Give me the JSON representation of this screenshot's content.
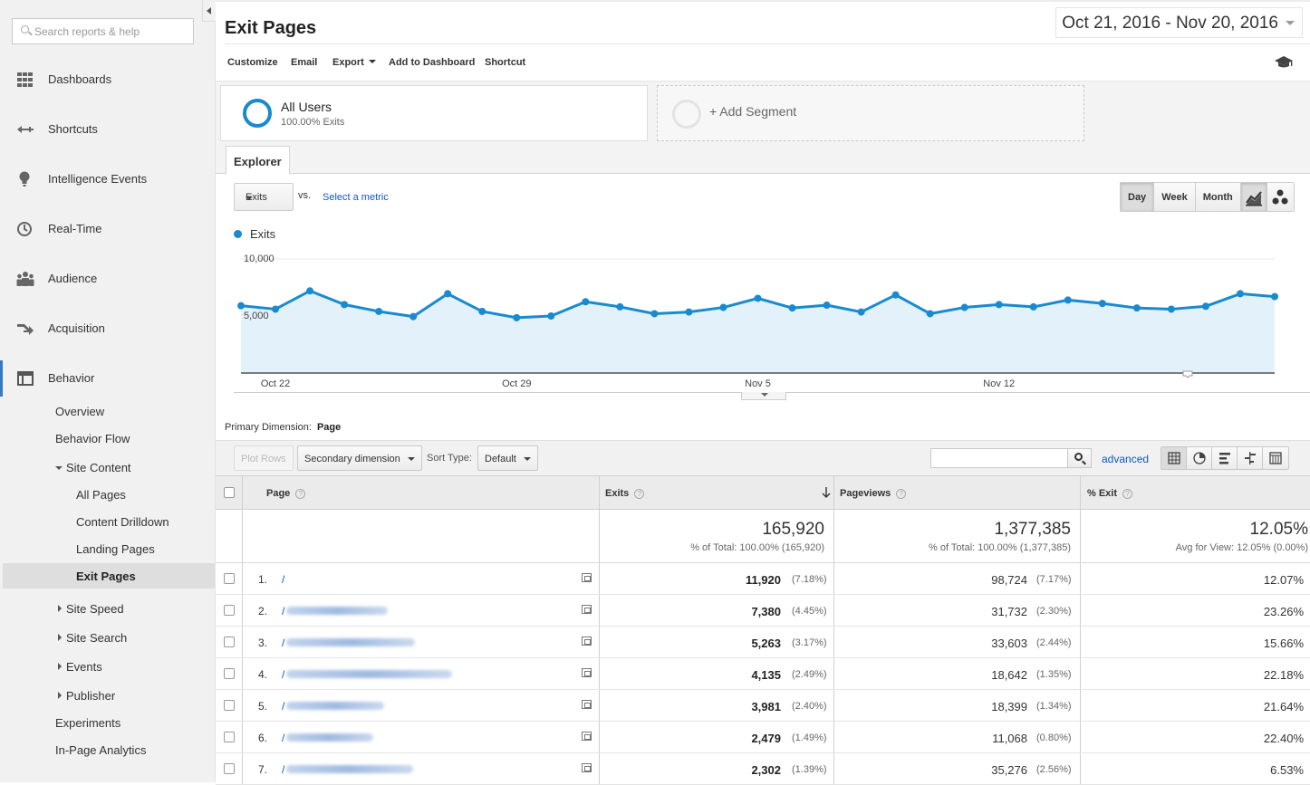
{
  "sidebar": {
    "search_placeholder": "Search reports & help",
    "nav": [
      {
        "label": "Dashboards",
        "icon": "dashboard-icon"
      },
      {
        "label": "Shortcuts",
        "icon": "shortcut-arrow-icon"
      },
      {
        "label": "Intelligence Events",
        "icon": "lightbulb-icon"
      },
      {
        "label": "Real-Time",
        "icon": "clock-icon"
      },
      {
        "label": "Audience",
        "icon": "people-icon"
      },
      {
        "label": "Acquisition",
        "icon": "acquisition-arrow-icon"
      },
      {
        "label": "Behavior",
        "icon": "behavior-window-icon"
      }
    ],
    "behavior_sub": {
      "overview": "Overview",
      "behavior_flow": "Behavior Flow",
      "site_content": "Site Content",
      "all_pages": "All Pages",
      "content_drilldown": "Content Drilldown",
      "landing_pages": "Landing Pages",
      "exit_pages": "Exit Pages",
      "site_speed": "Site Speed",
      "site_search": "Site Search",
      "events": "Events",
      "publisher": "Publisher",
      "experiments": "Experiments",
      "in_page_analytics": "In-Page Analytics"
    }
  },
  "header": {
    "title": "Exit Pages",
    "date_range": "Oct 21, 2016 - Nov 20, 2016"
  },
  "toolbar": {
    "customize": "Customize",
    "email": "Email",
    "export": "Export",
    "add_to_dashboard": "Add to Dashboard",
    "shortcut": "Shortcut"
  },
  "segments": {
    "all_users": "All Users",
    "all_users_sub": "100.00% Exits",
    "add_segment": "+ Add Segment"
  },
  "explorer": {
    "tab": "Explorer",
    "metric": "Exits",
    "vs": "vs.",
    "select_metric": "Select a metric",
    "periods": [
      "Day",
      "Week",
      "Month"
    ],
    "active_period": "Day",
    "legend": "Exits",
    "accent": "#1a8ad0"
  },
  "chart_data": {
    "type": "area",
    "series": [
      {
        "name": "Exits",
        "values": [
          5900,
          5600,
          7200,
          6000,
          5400,
          4950,
          6950,
          5400,
          4850,
          5000,
          6250,
          5800,
          5200,
          5350,
          5750,
          6550,
          5700,
          5950,
          5350,
          6850,
          5200,
          5750,
          6000,
          5800,
          6400,
          6100,
          5700,
          5600,
          5850,
          6950,
          6700
        ]
      }
    ],
    "x_labels": [
      "Oct 22",
      "Oct 29",
      "Nov 5",
      "Nov 12"
    ],
    "y_ticks": [
      "10,000",
      "5,000"
    ],
    "ylim": [
      0,
      10000
    ]
  },
  "table_controls": {
    "primary_dimension_label": "Primary Dimension:",
    "primary_dimension_value": "Page",
    "plot_rows": "Plot Rows",
    "secondary_dimension": "Secondary dimension",
    "sort_type_label": "Sort Type:",
    "sort_type_value": "Default",
    "advanced": "advanced"
  },
  "table": {
    "headers": {
      "page": "Page",
      "exits": "Exits",
      "pageviews": "Pageviews",
      "pct_exit": "% Exit"
    },
    "totals": {
      "exits": "165,920",
      "exits_sub": "% of Total: 100.00% (165,920)",
      "pageviews": "1,377,385",
      "pageviews_sub": "% of Total: 100.00% (1,377,385)",
      "pct_exit": "12.05%",
      "pct_exit_sub": "Avg for View: 12.05% (0.00%)"
    },
    "rows": [
      {
        "idx": "1.",
        "page": "/",
        "exits": "11,920",
        "exits_pct": "(7.18%)",
        "pageviews": "98,724",
        "pv_pct": "(7.17%)",
        "pct_exit": "12.07%"
      },
      {
        "idx": "2.",
        "page": "/",
        "exits": "7,380",
        "exits_pct": "(4.45%)",
        "pageviews": "31,732",
        "pv_pct": "(2.30%)",
        "pct_exit": "23.26%"
      },
      {
        "idx": "3.",
        "page": "/",
        "exits": "5,263",
        "exits_pct": "(3.17%)",
        "pageviews": "33,603",
        "pv_pct": "(2.44%)",
        "pct_exit": "15.66%"
      },
      {
        "idx": "4.",
        "page": "/",
        "exits": "4,135",
        "exits_pct": "(2.49%)",
        "pageviews": "18,642",
        "pv_pct": "(1.35%)",
        "pct_exit": "22.18%"
      },
      {
        "idx": "5.",
        "page": "/",
        "exits": "3,981",
        "exits_pct": "(2.40%)",
        "pageviews": "18,399",
        "pv_pct": "(1.34%)",
        "pct_exit": "21.64%"
      },
      {
        "idx": "6.",
        "page": "/",
        "exits": "2,479",
        "exits_pct": "(1.49%)",
        "pageviews": "11,068",
        "pv_pct": "(0.80%)",
        "pct_exit": "22.40%"
      },
      {
        "idx": "7.",
        "page": "/",
        "exits": "2,302",
        "exits_pct": "(1.39%)",
        "pageviews": "35,276",
        "pv_pct": "(2.56%)",
        "pct_exit": "6.53%"
      }
    ]
  }
}
